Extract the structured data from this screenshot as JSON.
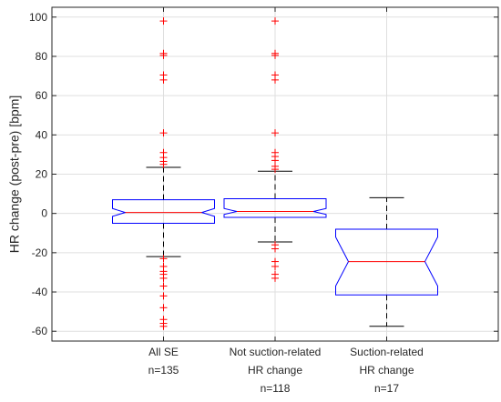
{
  "chart_data": {
    "type": "box",
    "title": "",
    "xlabel": "",
    "ylabel": "HR change (post-pre) [bpm]",
    "ylim": [
      -65,
      105
    ],
    "yticks": [
      -60,
      -40,
      -20,
      0,
      20,
      40,
      60,
      80,
      100
    ],
    "ytick_labels": [
      "-60",
      "-40",
      "-20",
      "0",
      "20",
      "40",
      "60",
      "80",
      "100"
    ],
    "grid": true,
    "notched": true,
    "categories": [
      [
        "All SE",
        "n=135"
      ],
      [
        "Not suction-related",
        "HR change",
        "n=118"
      ],
      [
        "Suction-related",
        "HR change",
        "n=17"
      ]
    ],
    "boxes": [
      {
        "whisker_low": -22,
        "q1": -5,
        "median": 0.5,
        "q3": 7,
        "whisker_high": 23.5,
        "notch_low": -1.5,
        "notch_high": 2.5,
        "outliers": [
          98,
          81.5,
          80.5,
          70.5,
          68,
          41,
          31,
          28.5,
          26.5,
          25,
          -23,
          -27,
          -29.5,
          -31,
          -33,
          -37,
          -42,
          -48,
          -54,
          -56,
          -57.5
        ]
      },
      {
        "whisker_low": -14.5,
        "q1": -2,
        "median": 1,
        "q3": 7.5,
        "whisker_high": 21.5,
        "notch_low": -0.5,
        "notch_high": 2.5,
        "outliers": [
          98,
          81.5,
          80.5,
          70.5,
          68,
          41,
          31,
          29,
          27,
          24,
          22.5,
          -16,
          -18,
          -24.5,
          -27,
          -31,
          -33
        ]
      },
      {
        "whisker_low": -57.5,
        "q1": -41.5,
        "median": -24.5,
        "q3": -8,
        "whisker_high": 8,
        "notch_low": -37,
        "notch_high": -12,
        "outliers": []
      }
    ],
    "colors": {
      "box": "#0000ff",
      "median": "#ff0000",
      "whisker": "#000000",
      "outlier": "#ff0000",
      "grid": "#dfdfdf",
      "axes": "#262626"
    }
  }
}
